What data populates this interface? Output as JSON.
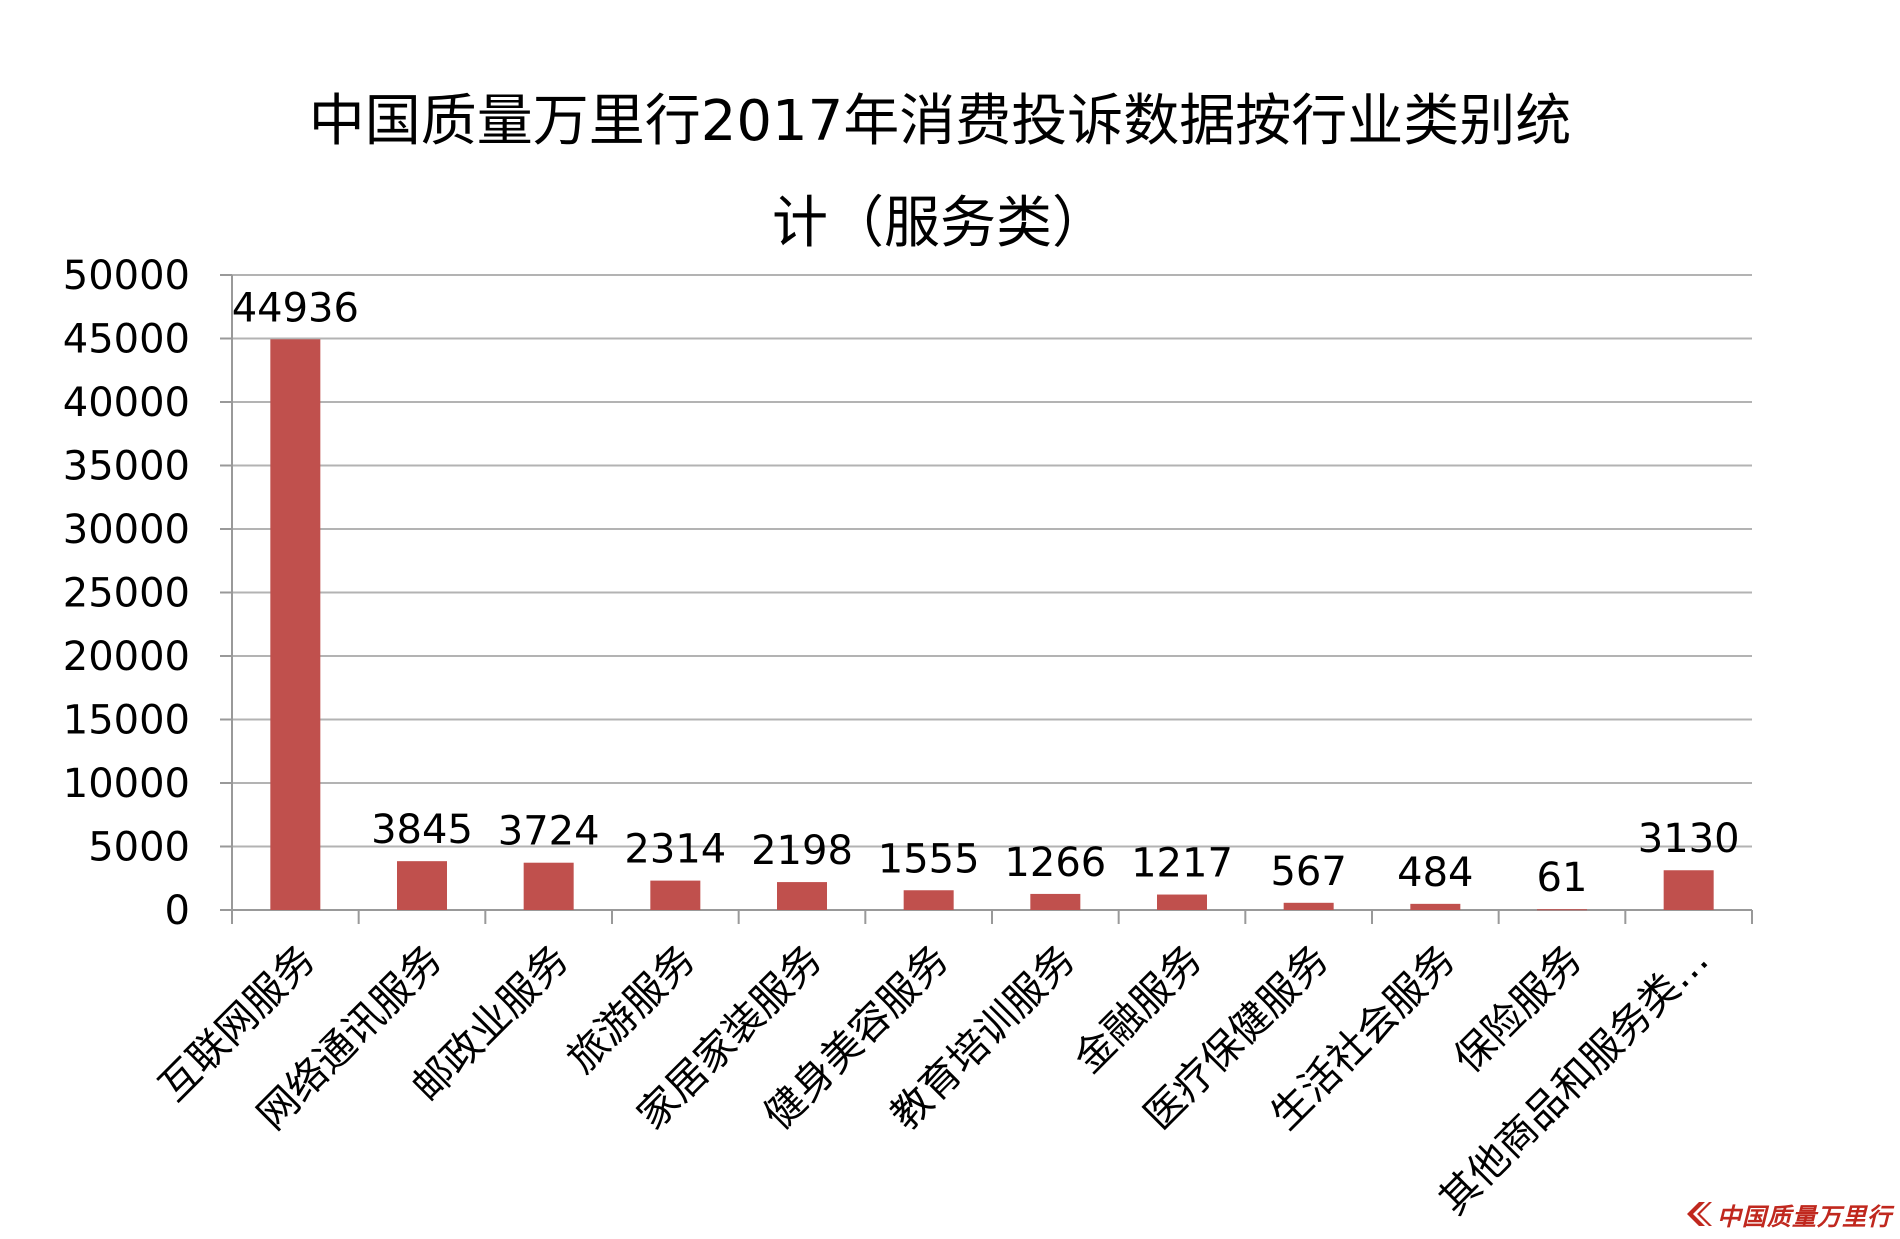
{
  "chart_data": {
    "type": "bar",
    "title_line1": "中国质量万里行2017年消费投诉数据按行业类别统",
    "title_line2": "计（服务类）",
    "categories": [
      "互联网服务",
      "网络通讯服务",
      "邮政业服务",
      "旅游服务",
      "家居家装服务",
      "健身美容服务",
      "教育培训服务",
      "金融服务",
      "医疗保健服务",
      "生活社会服务",
      "保险服务",
      "其他商品和服务类…"
    ],
    "values": [
      44936,
      3845,
      3724,
      2314,
      2198,
      1555,
      1266,
      1217,
      567,
      484,
      61,
      3130
    ],
    "y_ticks": [
      "0",
      "5000",
      "10000",
      "15000",
      "20000",
      "25000",
      "30000",
      "35000",
      "40000",
      "45000",
      "50000"
    ],
    "ylim": [
      0,
      50000
    ],
    "xlabel": "",
    "ylabel": "",
    "grid": true,
    "legend": "none",
    "bar_color": "#c0504d",
    "grid_color": "#b3b3b3"
  },
  "watermark": {
    "text": "中国质量万里行",
    "color": "#c0281e"
  }
}
